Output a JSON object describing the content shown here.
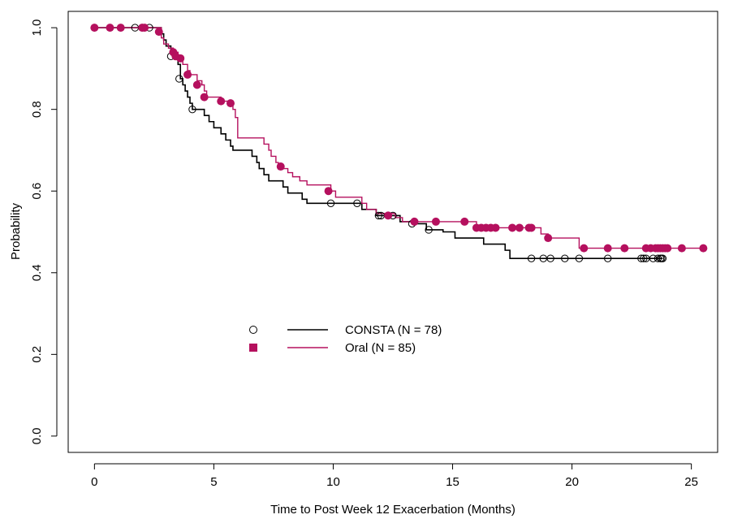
{
  "chart_data": {
    "type": "line",
    "subtype": "kaplan-meier",
    "title": "",
    "xlabel": "Time to Post Week 12 Exacerbation (Months)",
    "ylabel": "Probability",
    "xlim": [
      -1.1,
      26.1
    ],
    "ylim": [
      -0.04,
      1.04
    ],
    "xticks": [
      0,
      5,
      10,
      15,
      20,
      25
    ],
    "yticks": [
      0.0,
      0.2,
      0.4,
      0.6,
      0.8,
      1.0
    ],
    "xtick_labels": [
      "0",
      "5",
      "10",
      "15",
      "20",
      "25"
    ],
    "ytick_labels": [
      "0.0",
      "0.2",
      "0.4",
      "0.6",
      "0.8",
      "1.0"
    ],
    "grid": false,
    "legend_position": "center-left",
    "series": [
      {
        "name": "CONSTA (N = 78)",
        "color": "#000000",
        "marker": "open-circle",
        "steps": [
          [
            0,
            1.0
          ],
          [
            2.8,
            0.985
          ],
          [
            2.9,
            0.97
          ],
          [
            3.0,
            0.955
          ],
          [
            3.2,
            0.94
          ],
          [
            3.4,
            0.925
          ],
          [
            3.5,
            0.91
          ],
          [
            3.6,
            0.875
          ],
          [
            3.7,
            0.86
          ],
          [
            3.8,
            0.845
          ],
          [
            3.9,
            0.83
          ],
          [
            4.0,
            0.815
          ],
          [
            4.1,
            0.8
          ],
          [
            4.6,
            0.785
          ],
          [
            4.8,
            0.77
          ],
          [
            5.0,
            0.755
          ],
          [
            5.3,
            0.74
          ],
          [
            5.5,
            0.725
          ],
          [
            5.7,
            0.71
          ],
          [
            5.8,
            0.7
          ],
          [
            6.6,
            0.685
          ],
          [
            6.8,
            0.67
          ],
          [
            6.9,
            0.655
          ],
          [
            7.1,
            0.64
          ],
          [
            7.3,
            0.625
          ],
          [
            7.9,
            0.61
          ],
          [
            8.1,
            0.595
          ],
          [
            8.7,
            0.58
          ],
          [
            8.9,
            0.57
          ],
          [
            11.2,
            0.555
          ],
          [
            11.8,
            0.54
          ],
          [
            12.8,
            0.525
          ],
          [
            13.3,
            0.52
          ],
          [
            13.9,
            0.505
          ],
          [
            14.6,
            0.5
          ],
          [
            15.1,
            0.485
          ],
          [
            16.3,
            0.47
          ],
          [
            17.2,
            0.455
          ],
          [
            17.4,
            0.435
          ]
        ],
        "end_x": 23.8,
        "censored": [
          [
            1.7,
            1.0
          ],
          [
            2.0,
            1.0
          ],
          [
            2.3,
            1.0
          ],
          [
            3.55,
            0.875
          ],
          [
            3.2,
            0.93
          ],
          [
            4.1,
            0.8
          ],
          [
            9.9,
            0.57
          ],
          [
            11.0,
            0.57
          ],
          [
            11.9,
            0.54
          ],
          [
            12.0,
            0.54
          ],
          [
            12.5,
            0.54
          ],
          [
            13.3,
            0.52
          ],
          [
            14.0,
            0.505
          ],
          [
            18.3,
            0.435
          ],
          [
            18.8,
            0.435
          ],
          [
            19.1,
            0.435
          ],
          [
            19.7,
            0.435
          ],
          [
            20.3,
            0.435
          ],
          [
            21.5,
            0.435
          ],
          [
            22.9,
            0.435
          ],
          [
            23.0,
            0.435
          ],
          [
            23.1,
            0.435
          ],
          [
            23.4,
            0.435
          ],
          [
            23.6,
            0.435
          ],
          [
            23.7,
            0.435
          ],
          [
            23.75,
            0.435
          ],
          [
            23.8,
            0.435
          ]
        ]
      },
      {
        "name": "Oral (N = 85)",
        "color": "#b5105e",
        "marker": "filled-circle",
        "steps": [
          [
            0,
            1.0
          ],
          [
            2.8,
            0.975
          ],
          [
            2.9,
            0.96
          ],
          [
            3.1,
            0.95
          ],
          [
            3.3,
            0.94
          ],
          [
            3.5,
            0.925
          ],
          [
            3.7,
            0.91
          ],
          [
            3.9,
            0.895
          ],
          [
            4.0,
            0.885
          ],
          [
            4.3,
            0.87
          ],
          [
            4.5,
            0.86
          ],
          [
            4.6,
            0.845
          ],
          [
            4.7,
            0.83
          ],
          [
            5.3,
            0.82
          ],
          [
            5.8,
            0.8
          ],
          [
            5.9,
            0.78
          ],
          [
            6.0,
            0.73
          ],
          [
            7.1,
            0.715
          ],
          [
            7.3,
            0.7
          ],
          [
            7.4,
            0.685
          ],
          [
            7.6,
            0.67
          ],
          [
            7.7,
            0.655
          ],
          [
            8.1,
            0.645
          ],
          [
            8.3,
            0.635
          ],
          [
            8.6,
            0.625
          ],
          [
            8.9,
            0.615
          ],
          [
            9.9,
            0.6
          ],
          [
            10.1,
            0.585
          ],
          [
            11.2,
            0.57
          ],
          [
            11.4,
            0.555
          ],
          [
            11.8,
            0.545
          ],
          [
            12.6,
            0.535
          ],
          [
            12.9,
            0.525
          ],
          [
            14.3,
            0.525
          ],
          [
            16.0,
            0.51
          ],
          [
            18.7,
            0.495
          ],
          [
            19.0,
            0.485
          ],
          [
            20.3,
            0.46
          ]
        ],
        "end_x": 25.5,
        "censored": [
          [
            0.0,
            1.0
          ],
          [
            0.65,
            1.0
          ],
          [
            1.1,
            1.0
          ],
          [
            2.0,
            1.0
          ],
          [
            2.1,
            1.0
          ],
          [
            2.7,
            0.99
          ],
          [
            3.3,
            0.94
          ],
          [
            3.4,
            0.93
          ],
          [
            3.6,
            0.925
          ],
          [
            3.9,
            0.885
          ],
          [
            4.3,
            0.86
          ],
          [
            4.6,
            0.83
          ],
          [
            5.3,
            0.82
          ],
          [
            5.7,
            0.815
          ],
          [
            7.8,
            0.66
          ],
          [
            9.8,
            0.6
          ],
          [
            12.3,
            0.54
          ],
          [
            13.4,
            0.525
          ],
          [
            14.3,
            0.525
          ],
          [
            15.5,
            0.525
          ],
          [
            16.0,
            0.51
          ],
          [
            16.2,
            0.51
          ],
          [
            16.4,
            0.51
          ],
          [
            16.6,
            0.51
          ],
          [
            16.8,
            0.51
          ],
          [
            17.5,
            0.51
          ],
          [
            17.8,
            0.51
          ],
          [
            18.2,
            0.51
          ],
          [
            18.3,
            0.51
          ],
          [
            19.0,
            0.485
          ],
          [
            20.5,
            0.46
          ],
          [
            21.5,
            0.46
          ],
          [
            22.2,
            0.46
          ],
          [
            23.1,
            0.46
          ],
          [
            23.3,
            0.46
          ],
          [
            23.5,
            0.46
          ],
          [
            23.6,
            0.46
          ],
          [
            23.7,
            0.46
          ],
          [
            23.8,
            0.46
          ],
          [
            23.9,
            0.46
          ],
          [
            24.0,
            0.46
          ],
          [
            24.6,
            0.46
          ],
          [
            25.5,
            0.46
          ]
        ]
      }
    ]
  }
}
